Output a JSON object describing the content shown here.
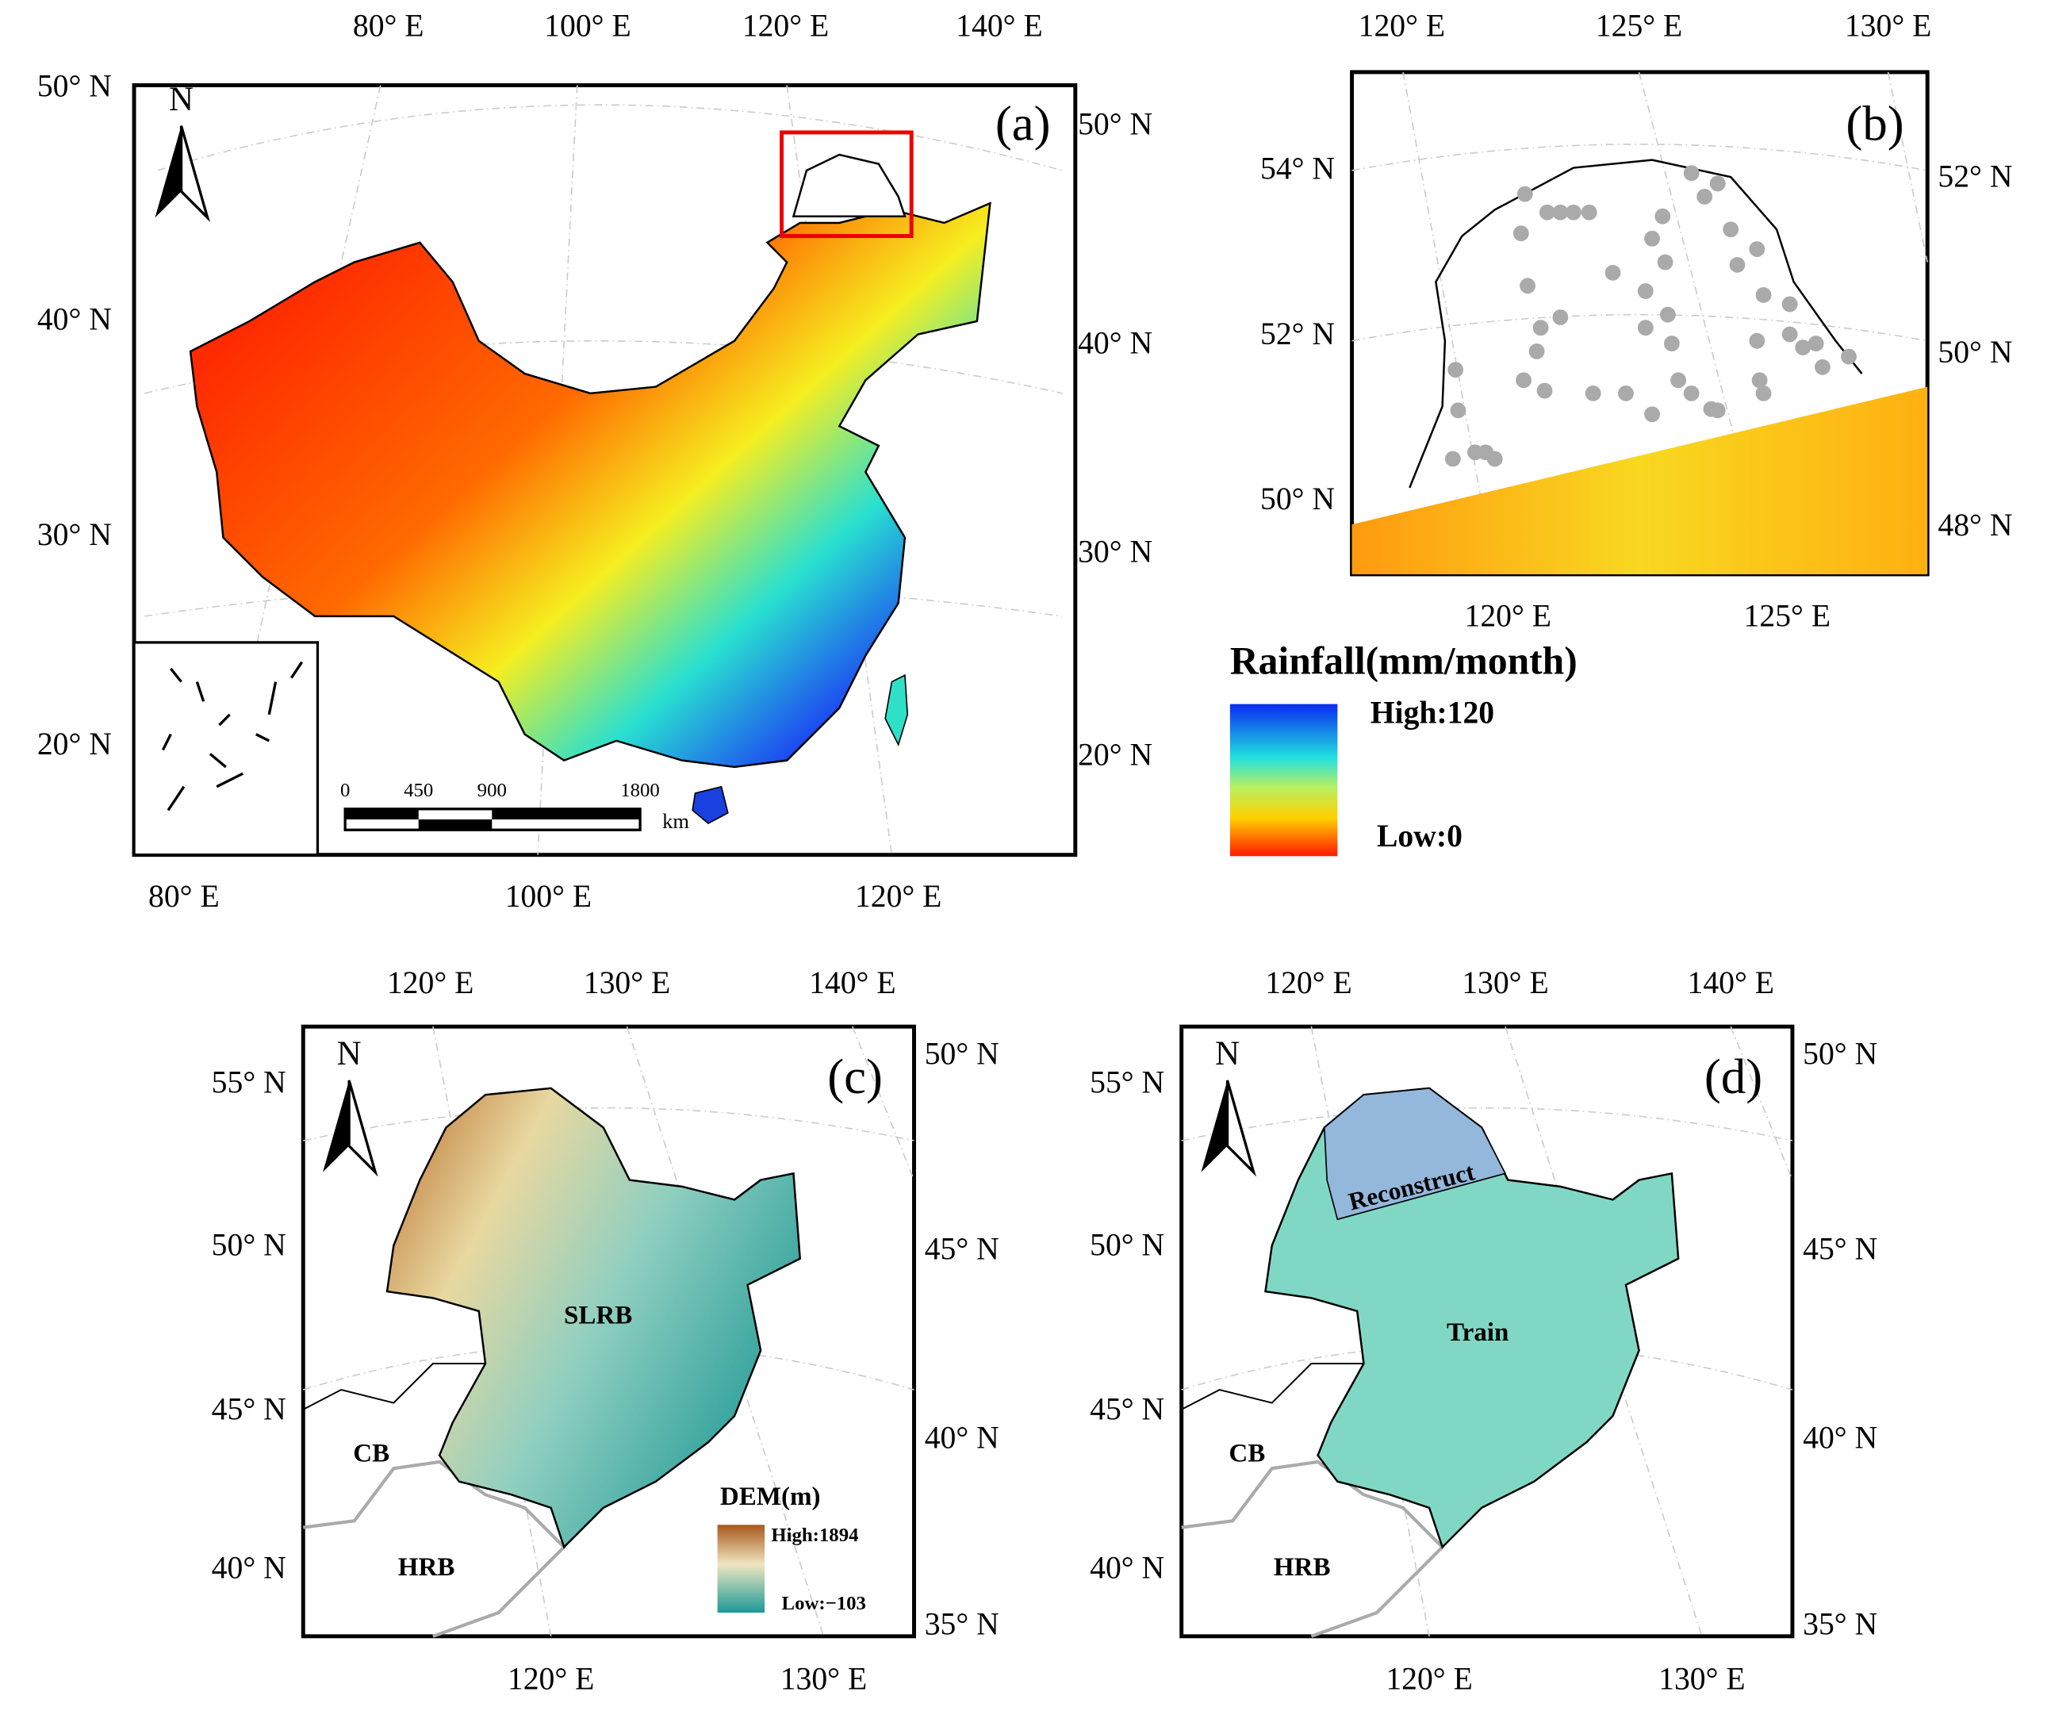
{
  "panels": {
    "a": {
      "label": "(a)",
      "north": "N",
      "top": [
        "80° E",
        "100° E",
        "120° E",
        "140° E"
      ],
      "left": [
        "50° N",
        "40° N",
        "30° N",
        "20° N"
      ],
      "right": [
        "50° N",
        "40° N",
        "30° N",
        "20° N"
      ],
      "bottom": [
        "80° E",
        "100° E",
        "120° E"
      ],
      "scale_bar": {
        "ticks": [
          "0",
          "450",
          "900",
          "1800"
        ],
        "unit": "km"
      }
    },
    "b": {
      "label": "(b)",
      "top": [
        "120° E",
        "125° E",
        "130° E"
      ],
      "left": [
        "54° N",
        "52° N",
        "50° N"
      ],
      "right": [
        "52° N",
        "50° N",
        "48° N"
      ],
      "bottom": [
        "120° E",
        "125° E"
      ]
    },
    "c": {
      "label": "(c)",
      "north": "N",
      "top": [
        "120° E",
        "130° E",
        "140° E"
      ],
      "left": [
        "55° N",
        "50° N",
        "45° N",
        "40° N"
      ],
      "right": [
        "50° N",
        "45° N",
        "40° N",
        "35° N"
      ],
      "bottom": [
        "120° E",
        "130° E"
      ],
      "regions": [
        "SLRB",
        "CB",
        "HRB"
      ],
      "legend": {
        "title": "DEM(m)",
        "high": "High:1894",
        "low": "Low:−103"
      }
    },
    "d": {
      "label": "(d)",
      "north": "N",
      "top": [
        "120° E",
        "130° E",
        "140° E"
      ],
      "left": [
        "55° N",
        "50° N",
        "45° N",
        "40° N"
      ],
      "right": [
        "50° N",
        "45° N",
        "40° N",
        "35° N"
      ],
      "bottom": [
        "120° E",
        "130° E"
      ],
      "regions": [
        "Reconstruct",
        "Train",
        "CB",
        "HRB"
      ]
    }
  },
  "rainfall_legend": {
    "title": "Rainfall(mm/month)",
    "high": "High:120",
    "low": "Low:0"
  }
}
